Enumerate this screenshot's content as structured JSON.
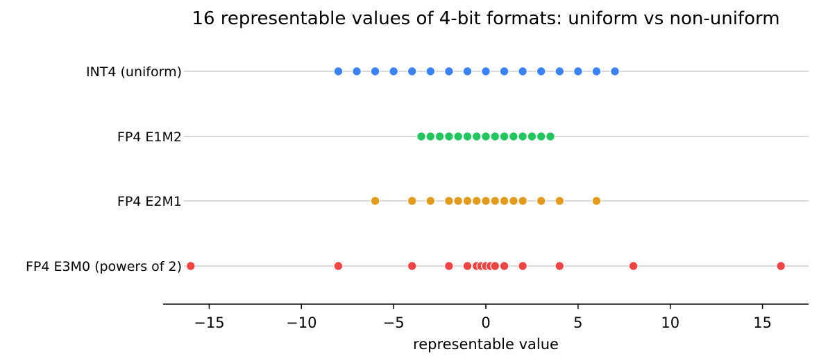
{
  "chart_data": {
    "type": "scatter",
    "title": "16 representable values of 4-bit formats: uniform vs non-uniform",
    "xlabel": "representable value",
    "ylabel": "",
    "xlim": [
      -17.5,
      17.5
    ],
    "xticks": [
      -15,
      -10,
      -5,
      0,
      5,
      10,
      15
    ],
    "xtick_labels": [
      "−15",
      "−10",
      "−5",
      "0",
      "5",
      "10",
      "15"
    ],
    "grid": false,
    "series": [
      {
        "name": "INT4 (uniform)",
        "color": "#3b82f6",
        "values": [
          -8,
          -7,
          -6,
          -5,
          -4,
          -3,
          -2,
          -1,
          0,
          1,
          2,
          3,
          4,
          5,
          6,
          7
        ]
      },
      {
        "name": "FP4 E1M2",
        "color": "#22c55e",
        "values": [
          -3.5,
          -3,
          -2.5,
          -2,
          -1.5,
          -1,
          -0.5,
          0,
          0,
          0.5,
          1,
          1.5,
          2,
          2.5,
          3,
          3.5
        ]
      },
      {
        "name": "FP4 E2M1",
        "color": "#e19c1d",
        "values": [
          -6,
          -4,
          -3,
          -2,
          -1.5,
          -1,
          -0.5,
          0,
          0,
          0.5,
          1,
          1.5,
          2,
          3,
          4,
          6
        ]
      },
      {
        "name": "FP4 E3M0 (powers of 2)",
        "color": "#ef4444",
        "values": [
          -16,
          -8,
          -4,
          -2,
          -1,
          -0.5,
          -0.25,
          0,
          0,
          0.25,
          0.5,
          1,
          2,
          4,
          8,
          16
        ]
      }
    ]
  }
}
